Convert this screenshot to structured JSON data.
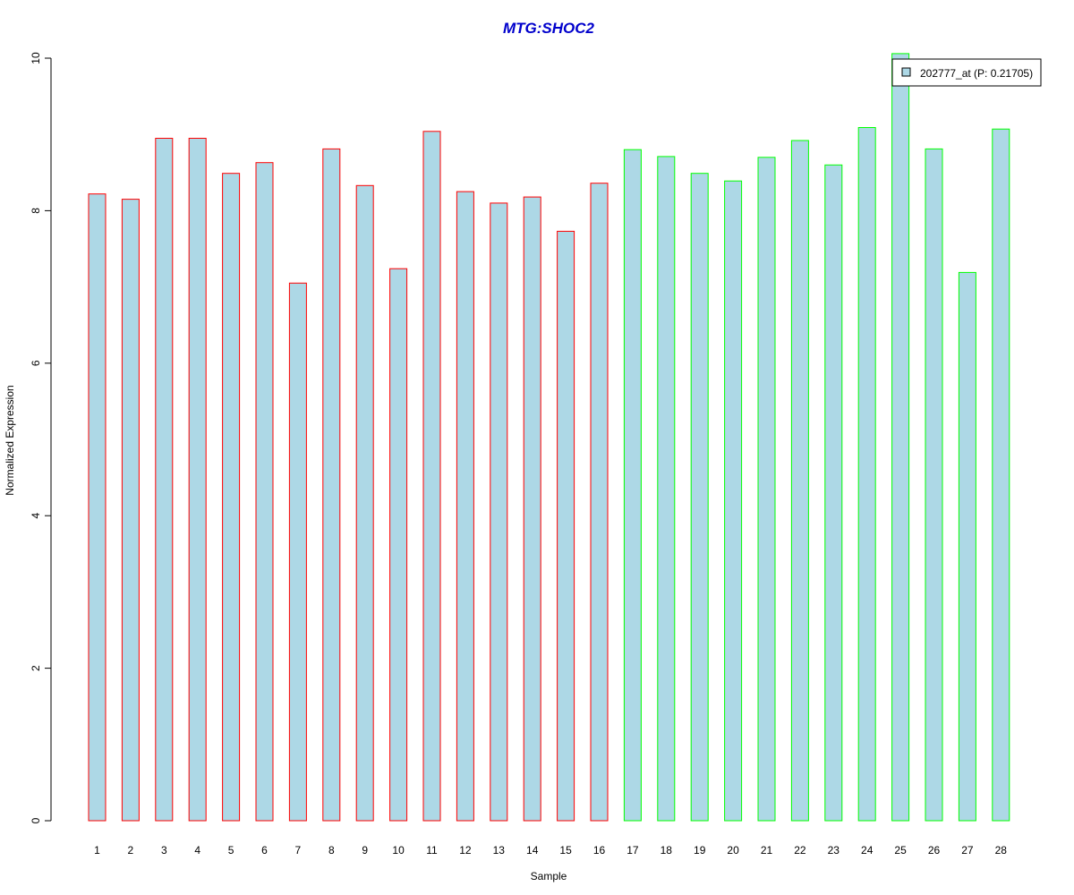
{
  "chart_data": {
    "type": "bar",
    "title": "MTG:SHOC2",
    "xlabel": "Sample",
    "ylabel": "Normalized Expression",
    "categories": [
      "1",
      "2",
      "3",
      "4",
      "5",
      "6",
      "7",
      "8",
      "9",
      "10",
      "11",
      "12",
      "13",
      "14",
      "15",
      "16",
      "17",
      "18",
      "19",
      "20",
      "21",
      "22",
      "23",
      "24",
      "25",
      "26",
      "27",
      "28"
    ],
    "values": [
      8.22,
      8.15,
      8.95,
      8.95,
      8.49,
      8.63,
      7.05,
      8.81,
      8.33,
      7.24,
      9.04,
      8.25,
      8.1,
      8.18,
      7.73,
      8.36,
      8.8,
      8.71,
      8.49,
      8.39,
      8.7,
      8.92,
      8.6,
      9.09,
      10.06,
      8.81,
      7.19,
      9.07
    ],
    "groups": [
      1,
      1,
      1,
      1,
      1,
      1,
      1,
      1,
      1,
      1,
      1,
      1,
      1,
      1,
      1,
      1,
      2,
      2,
      2,
      2,
      2,
      2,
      2,
      2,
      2,
      2,
      2,
      2
    ],
    "ylim": [
      0,
      10
    ],
    "yticks": [
      0,
      2,
      4,
      6,
      8,
      10
    ],
    "grid": false,
    "legend": {
      "label": "202777_at (P: 0.21705)",
      "placement": "top-right"
    }
  },
  "colors": {
    "title": "#0000cc",
    "bar_fill": "#add8e6",
    "group1_border": "#ff0000",
    "group2_border": "#00ff00",
    "axis": "#000000"
  }
}
